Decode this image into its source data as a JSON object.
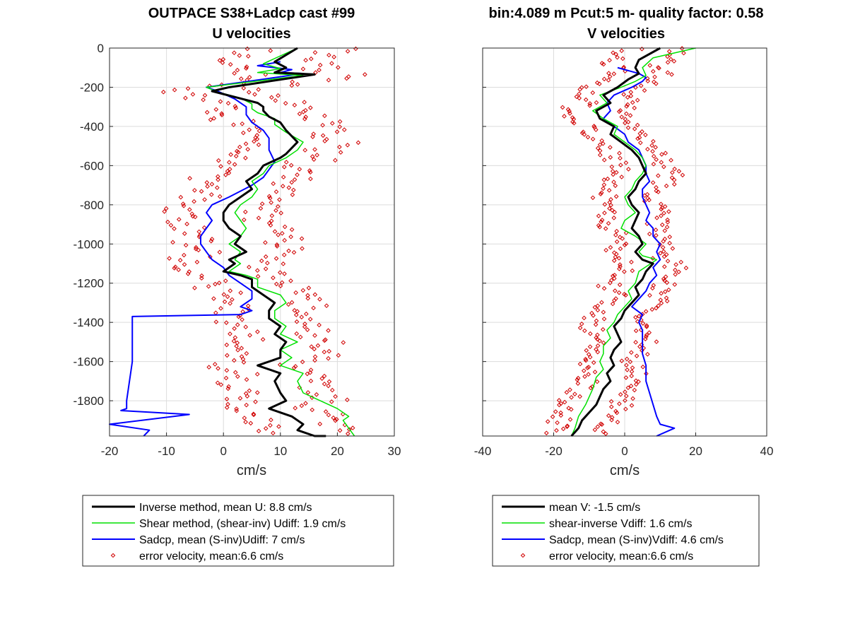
{
  "chart_data": [
    {
      "type": "line",
      "title": "OUTPACE S38+Ladcp cast #99",
      "subtitle": "U velocities",
      "xlabel": "cm/s",
      "ylabel": "",
      "xlim": [
        -20,
        30
      ],
      "ylim": [
        -1980,
        0
      ],
      "xticks": [
        "-20",
        "-10",
        "0",
        "10",
        "20",
        "30"
      ],
      "yticks": [
        "0",
        "-200",
        "-400",
        "-600",
        "-800",
        "-1000",
        "-1200",
        "-1400",
        "-1600",
        "-1800"
      ],
      "grid": true,
      "legend_position": "below",
      "series": [
        {
          "name": "Inverse method, mean U:  8.8 cm/s",
          "color": "#000000",
          "width": 3,
          "x": [
            13,
            9,
            11,
            9,
            16,
            1,
            -2,
            2,
            6,
            7,
            7,
            8,
            10,
            11,
            13,
            11,
            10,
            7,
            6,
            4,
            5,
            3,
            1,
            0,
            0,
            1,
            3,
            2,
            4,
            1,
            2,
            0,
            3,
            5,
            5,
            7,
            9,
            8,
            8,
            10,
            9,
            11,
            10,
            10,
            6,
            10,
            9,
            10,
            11,
            8,
            12,
            13,
            14,
            13,
            16,
            18,
            18,
            18,
            18
          ],
          "y": [
            0,
            -70,
            -100,
            -125,
            -135,
            -200,
            -220,
            -250,
            -280,
            -300,
            -320,
            -350,
            -380,
            -420,
            -480,
            -540,
            -560,
            -600,
            -640,
            -680,
            -720,
            -760,
            -800,
            -840,
            -880,
            -920,
            -960,
            -1000,
            -1040,
            -1080,
            -1100,
            -1140,
            -1160,
            -1180,
            -1220,
            -1260,
            -1300,
            -1340,
            -1380,
            -1420,
            -1460,
            -1500,
            -1540,
            -1580,
            -1620,
            -1660,
            -1700,
            -1760,
            -1800,
            -1840,
            -1880,
            -1900,
            -1920,
            -1950,
            -1980,
            -1980,
            -1980,
            -1980,
            -1980
          ]
        },
        {
          "name": "Shear method, (shear-inv)  Udiff:  1.9 cm/s",
          "color": "#00e000",
          "width": 1.5,
          "x": [
            13,
            7,
            10,
            6,
            14,
            -3,
            -1,
            3,
            5,
            5,
            6,
            9,
            9,
            11,
            14,
            13,
            11,
            8,
            7,
            5,
            6,
            5,
            3,
            2,
            3,
            4,
            3,
            1,
            3,
            2,
            3,
            1,
            4,
            6,
            6,
            10,
            11,
            9,
            9,
            11,
            10,
            13,
            10,
            12,
            10,
            14,
            13,
            14,
            17,
            20,
            22,
            21,
            22,
            23
          ],
          "y": [
            0,
            -80,
            -105,
            -125,
            -140,
            -200,
            -225,
            -255,
            -285,
            -310,
            -330,
            -360,
            -390,
            -430,
            -480,
            -520,
            -560,
            -600,
            -640,
            -680,
            -720,
            -760,
            -800,
            -840,
            -880,
            -920,
            -960,
            -1000,
            -1040,
            -1080,
            -1100,
            -1140,
            -1160,
            -1180,
            -1220,
            -1260,
            -1300,
            -1340,
            -1380,
            -1420,
            -1460,
            -1500,
            -1540,
            -1580,
            -1620,
            -1660,
            -1700,
            -1760,
            -1800,
            -1840,
            -1880,
            -1900,
            -1940,
            -1980
          ]
        },
        {
          "name": "Sadcp, mean (S-inv)Udiff: 7 cm/s",
          "color": "#0000ff",
          "width": 2,
          "x": [
            10,
            6,
            12,
            10,
            14,
            -3,
            -1,
            2,
            4,
            4,
            5,
            7,
            8,
            8,
            9,
            8,
            7,
            5,
            1,
            -2,
            -3,
            -2,
            -3,
            -4,
            -4,
            -3,
            -2,
            0,
            1,
            3,
            5,
            5,
            3,
            5,
            3,
            -16,
            -16,
            -17,
            -17,
            -18,
            -6,
            -20,
            -13,
            -14
          ],
          "y": [
            -70,
            -90,
            -110,
            -125,
            -130,
            -200,
            -220,
            -260,
            -300,
            -340,
            -380,
            -420,
            -460,
            -520,
            -580,
            -620,
            -660,
            -700,
            -760,
            -800,
            -840,
            -880,
            -920,
            -960,
            -1000,
            -1040,
            -1080,
            -1120,
            -1160,
            -1200,
            -1240,
            -1280,
            -1320,
            -1340,
            -1360,
            -1370,
            -1600,
            -1800,
            -1840,
            -1850,
            -1870,
            -1920,
            -1950,
            -1980
          ]
        }
      ]
    },
    {
      "type": "line",
      "title": "bin:4.089 m  Pcut:5 m- quality factor:  0.58",
      "subtitle": "V velocities",
      "xlabel": "cm/s",
      "ylabel": "",
      "xlim": [
        -40,
        40
      ],
      "ylim": [
        -1980,
        0
      ],
      "xticks": [
        "-40",
        "-20",
        "0",
        "20",
        "40"
      ],
      "yticks": [],
      "grid": true,
      "legend_position": "below",
      "series": [
        {
          "name": "mean V:  -1.5 cm/s",
          "color": "#000000",
          "width": 3,
          "x": [
            10,
            4,
            3,
            4,
            1,
            -2,
            -6,
            -4,
            -8,
            -7,
            -3,
            -4,
            -1,
            2,
            4,
            5,
            6,
            4,
            3,
            1,
            2,
            4,
            3,
            2,
            4,
            5,
            3,
            5,
            8,
            6,
            5,
            3,
            4,
            2,
            0,
            -1,
            -3,
            -2,
            -1,
            -3,
            -4,
            -3,
            -5,
            -4,
            -6,
            -7,
            -8,
            -10,
            -12,
            -13,
            -14,
            -15
          ],
          "y": [
            0,
            -60,
            -100,
            -130,
            -160,
            -200,
            -240,
            -280,
            -320,
            -360,
            -400,
            -440,
            -480,
            -520,
            -560,
            -600,
            -640,
            -680,
            -720,
            -760,
            -800,
            -840,
            -880,
            -920,
            -960,
            -1000,
            -1040,
            -1080,
            -1100,
            -1140,
            -1180,
            -1220,
            -1260,
            -1300,
            -1340,
            -1380,
            -1420,
            -1460,
            -1500,
            -1540,
            -1580,
            -1620,
            -1660,
            -1700,
            -1740,
            -1780,
            -1820,
            -1860,
            -1900,
            -1940,
            -1960,
            -1980
          ]
        },
        {
          "name": "shear-inverse Vdiff:  1.6 cm/s",
          "color": "#00e000",
          "width": 1.5,
          "x": [
            20,
            8,
            5,
            6,
            3,
            -1,
            -7,
            -5,
            -9,
            -6,
            -2,
            -3,
            0,
            3,
            5,
            6,
            5,
            3,
            2,
            0,
            1,
            3,
            0,
            -1,
            3,
            6,
            4,
            5,
            9,
            4,
            3,
            1,
            2,
            0,
            -2,
            -3,
            -5,
            -4,
            -6,
            -6,
            -7,
            -6,
            -8,
            -9,
            -10,
            -11,
            -13,
            -14,
            -15
          ],
          "y": [
            0,
            -50,
            -100,
            -140,
            -170,
            -200,
            -240,
            -280,
            -320,
            -360,
            -400,
            -440,
            -480,
            -520,
            -560,
            -600,
            -640,
            -680,
            -720,
            -760,
            -800,
            -840,
            -880,
            -920,
            -960,
            -1000,
            -1040,
            -1060,
            -1080,
            -1140,
            -1200,
            -1240,
            -1280,
            -1320,
            -1360,
            -1400,
            -1440,
            -1480,
            -1520,
            -1560,
            -1600,
            -1640,
            -1680,
            -1740,
            -1780,
            -1820,
            -1880,
            -1940,
            -1980
          ]
        },
        {
          "name": "Sadcp, mean (S-inv)Vdiff: 4.6 cm/s",
          "color": "#0000ff",
          "width": 2,
          "x": [
            -2,
            4,
            6,
            5,
            2,
            -3,
            -5,
            -4,
            -6,
            -3,
            0,
            1,
            4,
            5,
            6,
            6,
            7,
            5,
            5,
            6,
            7,
            6,
            8,
            8,
            10,
            9,
            10,
            8,
            9,
            7,
            6,
            4,
            2,
            5,
            4,
            5,
            5,
            5,
            6,
            6,
            7,
            8,
            9,
            10,
            14,
            9
          ],
          "y": [
            -100,
            -130,
            -150,
            -170,
            -200,
            -240,
            -280,
            -320,
            -360,
            -400,
            -440,
            -480,
            -520,
            -560,
            -600,
            -640,
            -680,
            -720,
            -760,
            -800,
            -840,
            -880,
            -920,
            -960,
            -1000,
            -1040,
            -1080,
            -1120,
            -1160,
            -1200,
            -1240,
            -1280,
            -1320,
            -1360,
            -1400,
            -1440,
            -1500,
            -1560,
            -1620,
            -1700,
            -1760,
            -1820,
            -1880,
            -1920,
            -1940,
            -1980
          ]
        }
      ],
      "error_series": {
        "name": "error velocity, mean:6.6 cm/s",
        "color": "#d00000"
      }
    }
  ],
  "legends": [
    {
      "entries": [
        {
          "label": "Inverse method, mean U:  8.8 cm/s",
          "color": "#000000",
          "kind": "line",
          "width": 3
        },
        {
          "label": "Shear method, (shear-inv)  Udiff:  1.9 cm/s",
          "color": "#00e000",
          "kind": "line",
          "width": 1.5
        },
        {
          "label": "Sadcp, mean (S-inv)Udiff: 7 cm/s",
          "color": "#0000ff",
          "kind": "line",
          "width": 2
        },
        {
          "label": "error velocity, mean:6.6 cm/s",
          "color": "#d00000",
          "kind": "marker"
        }
      ]
    },
    {
      "entries": [
        {
          "label": "mean V:  -1.5 cm/s",
          "color": "#000000",
          "kind": "line",
          "width": 3
        },
        {
          "label": "shear-inverse Vdiff:  1.6 cm/s",
          "color": "#00e000",
          "kind": "line",
          "width": 1.5
        },
        {
          "label": "Sadcp, mean (S-inv)Vdiff: 4.6 cm/s",
          "color": "#0000ff",
          "kind": "line",
          "width": 2
        },
        {
          "label": "error velocity, mean:6.6 cm/s",
          "color": "#d00000",
          "kind": "marker"
        }
      ]
    }
  ]
}
